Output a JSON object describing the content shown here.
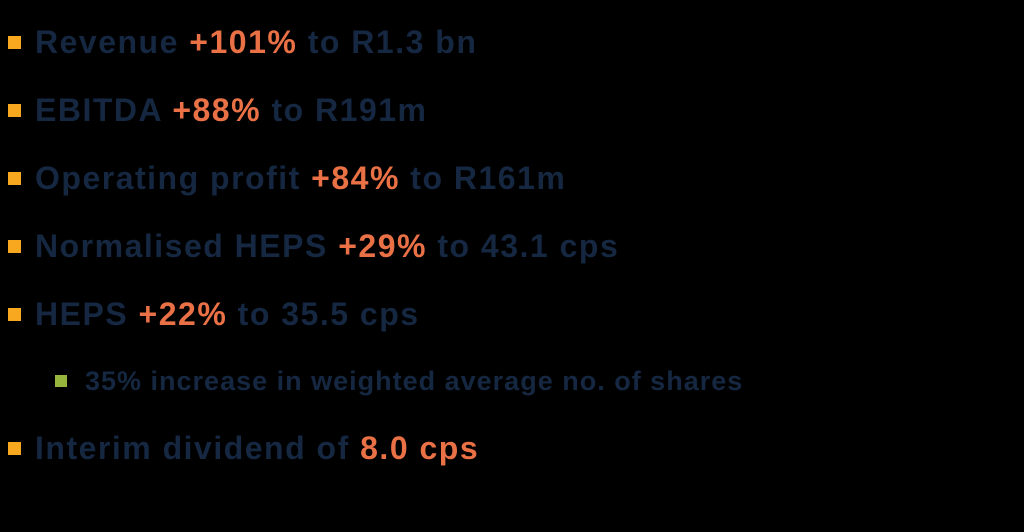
{
  "slide": {
    "background": "#000000",
    "colors": {
      "text": "#152741",
      "accent": "#E97145",
      "bullet": "#F7A81F",
      "sub_bullet": "#96B53D"
    },
    "bullets": [
      {
        "level": 1,
        "segments": [
          {
            "text": "Revenue ",
            "accent": false
          },
          {
            "text": "+101% ",
            "accent": true
          },
          {
            "text": "to R1.3 bn",
            "accent": false
          }
        ]
      },
      {
        "level": 1,
        "segments": [
          {
            "text": "EBITDA ",
            "accent": false
          },
          {
            "text": "+88% ",
            "accent": true
          },
          {
            "text": "to R191m",
            "accent": false
          }
        ]
      },
      {
        "level": 1,
        "segments": [
          {
            "text": "Operating profit ",
            "accent": false
          },
          {
            "text": "+84% ",
            "accent": true
          },
          {
            "text": "to R161m",
            "accent": false
          }
        ]
      },
      {
        "level": 1,
        "segments": [
          {
            "text": "Normalised HEPS ",
            "accent": false
          },
          {
            "text": "+29% ",
            "accent": true
          },
          {
            "text": "to 43.1 cps",
            "accent": false
          }
        ]
      },
      {
        "level": 1,
        "segments": [
          {
            "text": "HEPS ",
            "accent": false
          },
          {
            "text": "+22% ",
            "accent": true
          },
          {
            "text": "to 35.5 cps",
            "accent": false
          }
        ]
      },
      {
        "level": 2,
        "segments": [
          {
            "text": "35% increase in weighted average no. of shares",
            "accent": false
          }
        ]
      },
      {
        "level": 1,
        "segments": [
          {
            "text": "Interim dividend of ",
            "accent": false
          },
          {
            "text": "8.0 cps",
            "accent": true
          }
        ]
      }
    ]
  }
}
